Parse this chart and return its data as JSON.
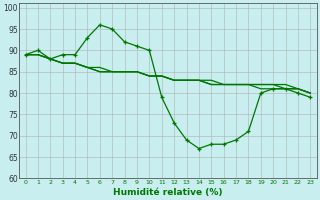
{
  "xlabel": "Humidité relative (%)",
  "xlim": [
    -0.5,
    23.5
  ],
  "ylim": [
    60,
    101
  ],
  "xticks": [
    0,
    1,
    2,
    3,
    4,
    5,
    6,
    7,
    8,
    9,
    10,
    11,
    12,
    13,
    14,
    15,
    16,
    17,
    18,
    19,
    20,
    21,
    22,
    23
  ],
  "yticks": [
    60,
    65,
    70,
    75,
    80,
    85,
    90,
    95,
    100
  ],
  "bg_color": "#c8eef0",
  "grid_color": "#b0b0b0",
  "line_color": "#007700",
  "line1_x": [
    0,
    1,
    2,
    3,
    4,
    5,
    6,
    7,
    8,
    9,
    10,
    11,
    12,
    13,
    14,
    15,
    16,
    17,
    18,
    19,
    20,
    21,
    22,
    23
  ],
  "line1_y": [
    89,
    90,
    88,
    89,
    89,
    93,
    96,
    95,
    92,
    91,
    90,
    79,
    73,
    69,
    67,
    68,
    68,
    69,
    71,
    80,
    81,
    81,
    80,
    79
  ],
  "line2_x": [
    0,
    1,
    2,
    3,
    4,
    5,
    6,
    7,
    8,
    9,
    10,
    11,
    12,
    13,
    14,
    15,
    16,
    17,
    18,
    19,
    20,
    21,
    22,
    23
  ],
  "line2_y": [
    89,
    89,
    88,
    87,
    87,
    86,
    86,
    85,
    85,
    85,
    84,
    84,
    83,
    83,
    83,
    83,
    82,
    82,
    82,
    81,
    81,
    81,
    81,
    80
  ],
  "line3_x": [
    0,
    1,
    2,
    3,
    4,
    5,
    6,
    7,
    8,
    9,
    10,
    11,
    12,
    13,
    14,
    15,
    16,
    17,
    18,
    19,
    20,
    21,
    22,
    23
  ],
  "line3_y": [
    89,
    89,
    88,
    87,
    87,
    86,
    85,
    85,
    85,
    85,
    84,
    84,
    83,
    83,
    83,
    82,
    82,
    82,
    82,
    82,
    82,
    82,
    81,
    80
  ],
  "line4_x": [
    0,
    1,
    2,
    3,
    4,
    5,
    6,
    7,
    8,
    9,
    10,
    11,
    12,
    13,
    14,
    15,
    16,
    17,
    18,
    19,
    20,
    21,
    22,
    23
  ],
  "line4_y": [
    89,
    89,
    88,
    87,
    87,
    86,
    85,
    85,
    85,
    85,
    84,
    84,
    83,
    83,
    83,
    82,
    82,
    82,
    82,
    82,
    82,
    81,
    81,
    80
  ]
}
